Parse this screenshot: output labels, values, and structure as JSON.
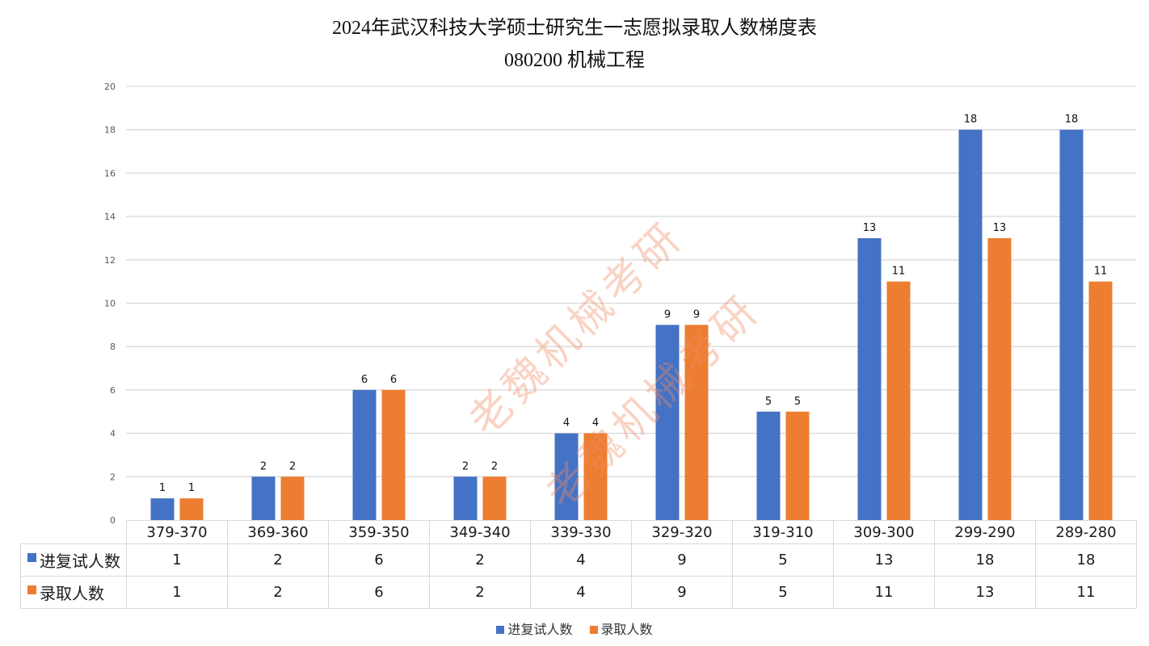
{
  "header": {
    "title_line1": "2024年武汉科技大学硕士研究生一志愿拟录取人数梯度表",
    "title_line2": "080200  机械工程"
  },
  "watermark": {
    "text": "老魏机械考研"
  },
  "colors": {
    "series1": "#4472C4",
    "series2": "#ED7D31",
    "grid": "#D9D9D9",
    "axis_text": "#595959"
  },
  "legend": {
    "items": [
      "进复试人数",
      "录取人数"
    ]
  },
  "table": {
    "row_labels": [
      "进复试人数",
      "录取人数"
    ],
    "categories": [
      "379-370",
      "369-360",
      "359-350",
      "349-340",
      "339-330",
      "329-320",
      "319-310",
      "309-300",
      "299-290",
      "289-280"
    ],
    "rows": [
      [
        "1",
        "2",
        "6",
        "2",
        "4",
        "9",
        "5",
        "13",
        "18",
        "18"
      ],
      [
        "1",
        "2",
        "6",
        "2",
        "4",
        "9",
        "5",
        "11",
        "13",
        "11"
      ]
    ]
  },
  "chart_data": {
    "type": "bar",
    "title": "2024年武汉科技大学硕士研究生一志愿拟录取人数梯度表 080200 机械工程",
    "xlabel": "",
    "ylabel": "",
    "categories": [
      "379-370",
      "369-360",
      "359-350",
      "349-340",
      "339-330",
      "329-320",
      "319-310",
      "309-300",
      "299-290",
      "289-280"
    ],
    "series": [
      {
        "name": "进复试人数",
        "color": "#4472C4",
        "values": [
          1,
          2,
          6,
          2,
          4,
          9,
          5,
          13,
          18,
          18
        ]
      },
      {
        "name": "录取人数",
        "color": "#ED7D31",
        "values": [
          1,
          2,
          6,
          2,
          4,
          9,
          5,
          11,
          13,
          11
        ]
      }
    ],
    "ylim": [
      0,
      20
    ],
    "yticks": [
      0,
      2,
      4,
      6,
      8,
      10,
      12,
      14,
      16,
      18,
      20
    ],
    "grid": true,
    "data_labels": true,
    "data_table": true,
    "legend_position": "bottom"
  }
}
